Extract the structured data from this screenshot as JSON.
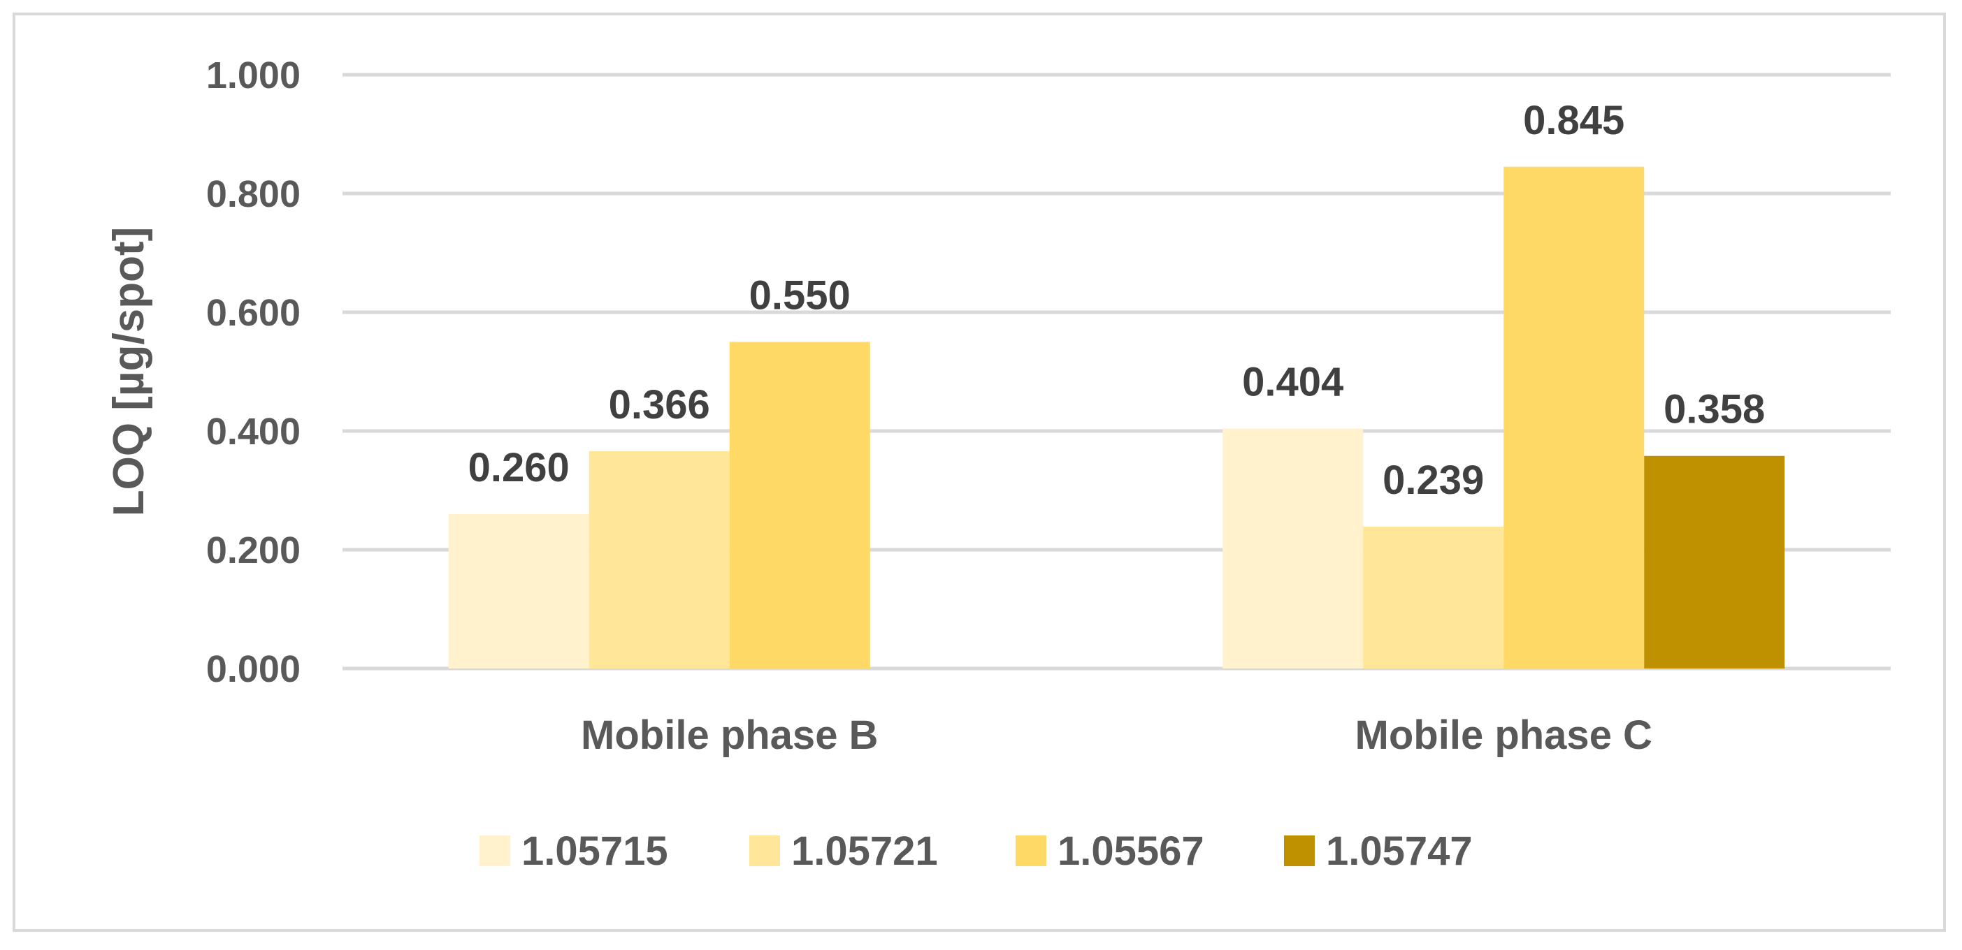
{
  "chart_data": {
    "type": "bar",
    "categories": [
      "Mobile phase B",
      "Mobile phase C"
    ],
    "series": [
      {
        "name": "1.05715",
        "color": "#fff2cc",
        "values": [
          0.26,
          0.404
        ]
      },
      {
        "name": "1.05721",
        "color": "#ffe699",
        "values": [
          0.366,
          0.239
        ]
      },
      {
        "name": "1.05567",
        "color": "#ffd966",
        "values": [
          0.55,
          0.845
        ]
      },
      {
        "name": "1.05747",
        "color": "#bf9000",
        "values": [
          null,
          0.358
        ]
      }
    ],
    "data_labels": [
      [
        "0.260",
        "0.404"
      ],
      [
        "0.366",
        "0.239"
      ],
      [
        "0.550",
        "0.845"
      ],
      [
        null,
        "0.358"
      ]
    ],
    "yticks": [
      0,
      0.2,
      0.4,
      0.6,
      0.8,
      1.0
    ],
    "ytick_labels": [
      "0.000",
      "0.200",
      "0.400",
      "0.600",
      "0.800",
      "1.000"
    ],
    "ylim": [
      0,
      1.0
    ],
    "ylabel": "LOQ [µg/spot]",
    "xlabel": "",
    "title": "",
    "grid": true,
    "legend_position": "bottom"
  }
}
